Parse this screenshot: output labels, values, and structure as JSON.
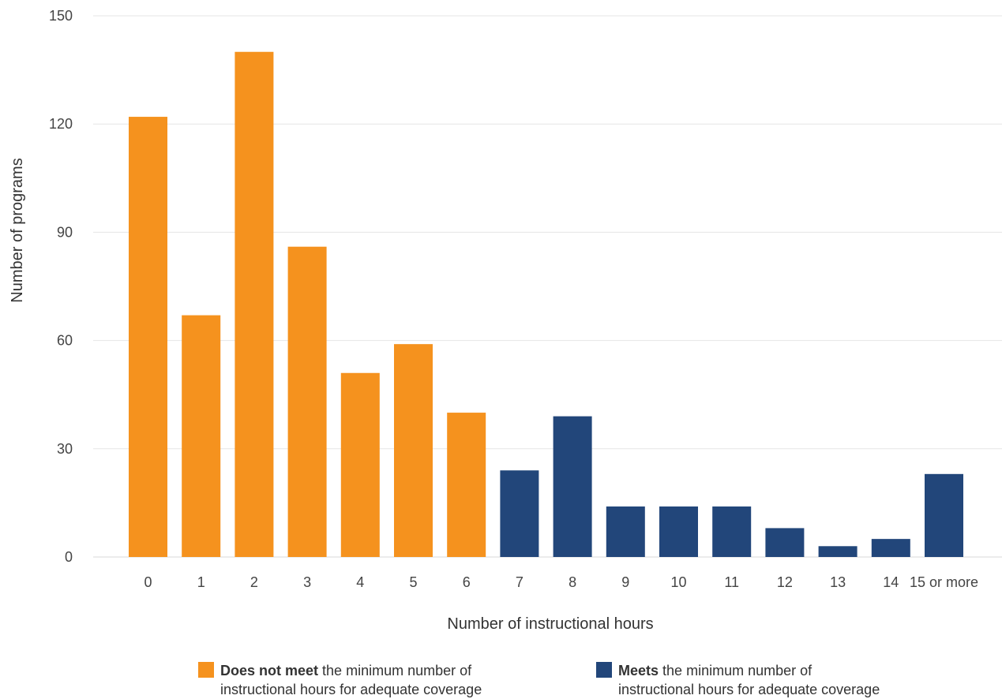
{
  "chart_data": {
    "type": "bar",
    "xlabel": "Number of instructional hours",
    "ylabel": "Number of programs",
    "categories": [
      "0",
      "1",
      "2",
      "3",
      "4",
      "5",
      "6",
      "7",
      "8",
      "9",
      "10",
      "11",
      "12",
      "13",
      "14",
      "15 or more"
    ],
    "values": [
      122,
      67,
      140,
      86,
      51,
      59,
      40,
      24,
      39,
      14,
      14,
      14,
      8,
      3,
      5,
      23
    ],
    "ylim": [
      0,
      150
    ],
    "yticks": [
      0,
      30,
      60,
      90,
      120,
      150
    ],
    "grid": true,
    "groups": {
      "not_meet": {
        "color": "#F5921E",
        "categories": [
          "0",
          "1",
          "2",
          "3",
          "4",
          "5",
          "6"
        ]
      },
      "meets": {
        "color": "#22467A",
        "categories": [
          "7",
          "8",
          "9",
          "10",
          "11",
          "12",
          "13",
          "14",
          "15 or more"
        ]
      }
    },
    "legend": [
      {
        "key": "not_meet",
        "bold": "Does not meet",
        "rest": "the minimum number of",
        "line2": "instructional hours for adequate coverage"
      },
      {
        "key": "meets",
        "bold": "Meets",
        "rest": "the minimum number of",
        "line2": "instructional hours for adequate coverage"
      }
    ],
    "legend_position": "bottom"
  }
}
